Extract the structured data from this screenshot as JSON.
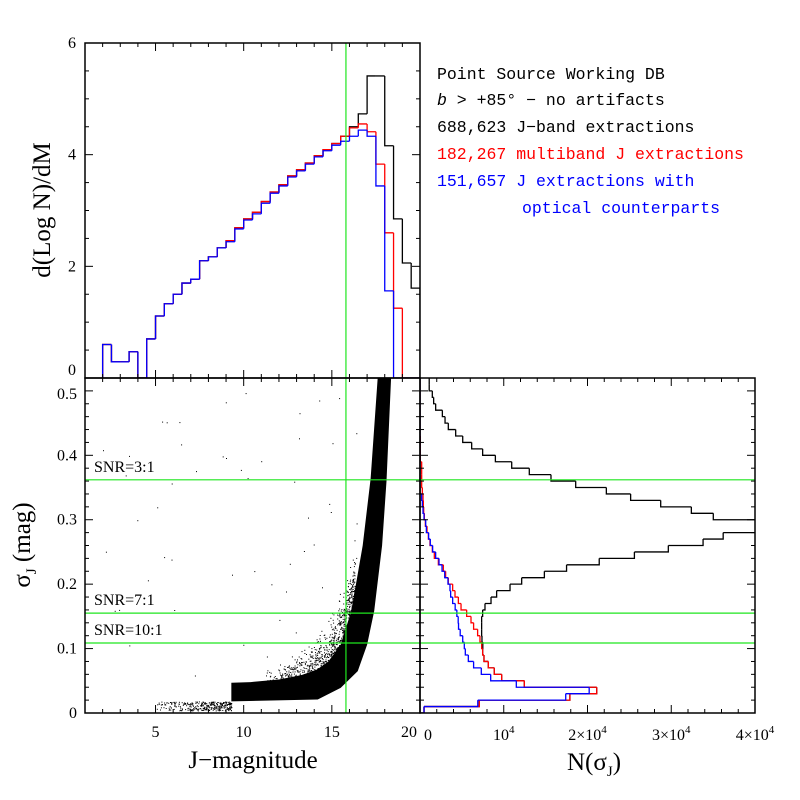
{
  "legend": {
    "title": "Point Source Working DB",
    "cut_var": "b",
    "cut_text": " > +85° − no artifacts",
    "line_black": "688,623 J−band extractions",
    "line_red": "182,267 multiband J extractions",
    "line_blue_1": "151,657 J extractions with",
    "line_blue_2": "optical counterparts"
  },
  "colors": {
    "black": "#000000",
    "red": "#ff0000",
    "blue": "#0000ff",
    "green": "#1ee61e"
  },
  "chart_data": [
    {
      "type": "histogram-step",
      "panel": "top",
      "ylabel": "d(Log N)/dM",
      "xlim": [
        1,
        20
      ],
      "ylim": [
        0,
        6
      ],
      "xticks": [
        "5",
        "10",
        "15",
        "20"
      ],
      "xtick_values": [
        5,
        10,
        15,
        20
      ],
      "yticks": [
        "0",
        "2",
        "4",
        "6"
      ],
      "ytick_values": [
        0,
        2,
        4,
        6
      ],
      "bin_width": 0.5,
      "bin_start": 2.0,
      "series": [
        {
          "name": "688,623 J-band extractions",
          "color": "black",
          "values": [
            0.6,
            0.29,
            0.29,
            0.47,
            0,
            0.7,
            1.11,
            1.33,
            1.5,
            1.7,
            1.77,
            2.1,
            2.17,
            2.33,
            2.46,
            2.69,
            2.85,
            2.97,
            3.16,
            3.33,
            3.46,
            3.62,
            3.73,
            3.85,
            3.98,
            4.09,
            4.2,
            4.33,
            4.5,
            4.73,
            5.41,
            5.41,
            4.16,
            2.85,
            2.06,
            1.61
          ]
        },
        {
          "name": "182,267 multiband J extractions",
          "color": "red",
          "values": [
            0.6,
            0.29,
            0.29,
            0.47,
            0,
            0.7,
            1.11,
            1.33,
            1.5,
            1.7,
            1.77,
            2.1,
            2.17,
            2.33,
            2.46,
            2.69,
            2.85,
            2.97,
            3.16,
            3.33,
            3.46,
            3.62,
            3.73,
            3.85,
            3.98,
            4.09,
            4.2,
            4.33,
            4.48,
            4.55,
            4.41,
            3.83,
            2.6,
            1.25,
            0,
            0
          ]
        },
        {
          "name": "151,657 J extractions with optical counterparts",
          "color": "blue",
          "values": [
            0.6,
            0.29,
            0.29,
            0.47,
            0,
            0.7,
            1.11,
            1.33,
            1.5,
            1.7,
            1.77,
            2.1,
            2.17,
            2.33,
            2.44,
            2.67,
            2.83,
            2.94,
            3.13,
            3.31,
            3.44,
            3.6,
            3.71,
            3.83,
            3.96,
            4.07,
            4.17,
            4.24,
            4.33,
            4.44,
            4.33,
            3.44,
            1.56,
            0,
            0,
            0
          ]
        }
      ],
      "vline": 15.8
    },
    {
      "type": "scatter",
      "panel": "bottom-left",
      "xlabel": "J−magnitude",
      "ylabel_main": "σ",
      "ylabel_sub": "J",
      "ylabel_rest": " (mag)",
      "xlim": [
        1,
        20
      ],
      "ylim": [
        0,
        0.52
      ],
      "xticks": [
        "5",
        "10",
        "15",
        "20"
      ],
      "xtick_values": [
        5,
        10,
        15,
        20
      ],
      "yticks": [
        "0",
        "0.1",
        "0.2",
        "0.3",
        "0.4",
        "0.5"
      ],
      "ytick_values": [
        0,
        0.1,
        0.2,
        0.3,
        0.4,
        0.5
      ],
      "dense_locus_upper": [
        [
          9.3,
          0.047
        ],
        [
          10.4,
          0.048
        ],
        [
          12,
          0.052
        ],
        [
          13.3,
          0.059
        ],
        [
          14.2,
          0.068
        ],
        [
          14.8,
          0.08
        ],
        [
          15.5,
          0.106
        ],
        [
          16.1,
          0.158
        ],
        [
          16.75,
          0.26
        ],
        [
          17.2,
          0.364
        ],
        [
          17.6,
          0.52
        ]
      ],
      "dense_locus_lower": [
        [
          18.36,
          0.52
        ],
        [
          18.1,
          0.36
        ],
        [
          17.85,
          0.26
        ],
        [
          17.4,
          0.158
        ],
        [
          17.0,
          0.106
        ],
        [
          16.47,
          0.065
        ],
        [
          15.5,
          0.039
        ],
        [
          14.2,
          0.021
        ],
        [
          9.3,
          0.018
        ]
      ],
      "sparse_regions": [
        {
          "name": "bright-strip",
          "J": [
            5.0,
            9.3
          ],
          "sigma": [
            0.004,
            0.018
          ],
          "count": 320
        },
        {
          "name": "cloud-above-locus",
          "J": [
            11.0,
            16.3
          ],
          "spread": 0.035,
          "count": 650
        },
        {
          "name": "outliers",
          "J": [
            2.0,
            17.0
          ],
          "sigma": [
            0.05,
            0.5
          ],
          "count": 60
        }
      ],
      "vline": 15.8,
      "snr_lines": [
        {
          "label": "SNR=3:1",
          "sigma": 0.362
        },
        {
          "label": "SNR=7:1",
          "sigma": 0.155
        },
        {
          "label": "SNR=10:1",
          "sigma": 0.1086
        }
      ]
    },
    {
      "type": "histogram-step-horizontal",
      "panel": "bottom-right",
      "xlabel_main": "N(σ",
      "xlabel_sub": "J",
      "xlabel_end": ")",
      "xlim": [
        0,
        40000
      ],
      "ylim": [
        0,
        0.52
      ],
      "xticks": [
        {
          "text": "0",
          "sup": ""
        },
        {
          "text": "10",
          "sup": "4"
        },
        {
          "text": "2×10",
          "sup": "4"
        },
        {
          "text": "3×10",
          "sup": "4"
        },
        {
          "text": "4×10",
          "sup": "4"
        }
      ],
      "xtick_values": [
        0,
        10000,
        20000,
        30000,
        40000
      ],
      "bin_width": 0.01,
      "series": [
        {
          "name": "J-band",
          "color": "black",
          "values": [
            480,
            7080,
            17900,
            21100,
            12460,
            9750,
            8870,
            8160,
            7640,
            7480,
            7500,
            7400,
            7360,
            7360,
            7360,
            7480,
            7760,
            8480,
            9150,
            10750,
            12140,
            14850,
            17500,
            21400,
            25600,
            29650,
            33800,
            36200,
            42000,
            44000,
            35020,
            32400,
            28740,
            25150,
            22250,
            18590,
            15640,
            13050,
            10950,
            9000,
            7480,
            6170,
            5100,
            4260,
            3380,
            2990,
            2670,
            1870,
            1630,
            1470,
            1100,
            1100
          ]
        },
        {
          "name": "multiband",
          "color": "red",
          "values": [
            480,
            7080,
            17900,
            21100,
            12460,
            9750,
            8870,
            8160,
            7640,
            7480,
            7360,
            7160,
            6880,
            6400,
            6090,
            5570,
            4900,
            4580,
            4180,
            3900,
            3380,
            3060,
            2790,
            2190,
            1710,
            1470,
            1190,
            1000,
            840,
            640,
            520,
            440,
            400,
            360,
            280,
            200,
            200,
            200,
            200,
            40,
            40,
            40,
            40,
            0,
            0,
            0,
            0,
            0,
            0,
            0,
            0,
            0
          ]
        },
        {
          "name": "optical counterparts",
          "color": "blue",
          "values": [
            480,
            6900,
            17400,
            20200,
            11500,
            8440,
            7320,
            6400,
            5770,
            5410,
            5290,
            5100,
            4800,
            4600,
            4560,
            4400,
            4200,
            3900,
            3660,
            3580,
            3340,
            2950,
            2630,
            2270,
            1870,
            1510,
            1230,
            1030,
            760,
            680,
            480,
            360,
            280,
            200,
            0,
            0,
            0,
            0,
            0,
            0,
            0,
            0,
            0,
            0,
            0,
            0,
            0,
            0,
            0,
            0,
            0,
            0
          ]
        }
      ]
    }
  ]
}
